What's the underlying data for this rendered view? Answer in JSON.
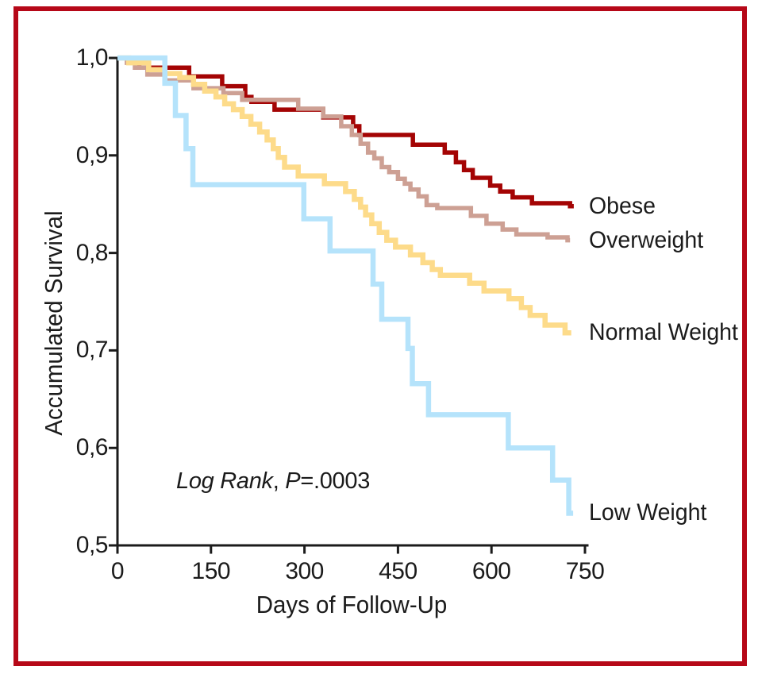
{
  "figure": {
    "border_color": "#b60818",
    "background_color": "#ffffff"
  },
  "chart_data": {
    "type": "line",
    "subtype": "kaplan-meier-step-survival",
    "xlabel": "Days of Follow-Up",
    "ylabel": "Accumulated Survival",
    "xlim": [
      0,
      750
    ],
    "ylim": [
      0.5,
      1.0
    ],
    "grid": false,
    "axis_color": "#1b1b1b",
    "legend_position": "labels-at-curve-ends-right",
    "xticks": {
      "values": [
        0,
        150,
        300,
        450,
        600,
        750
      ],
      "labels": [
        "0",
        "150",
        "300",
        "450",
        "600",
        "750"
      ]
    },
    "yticks": {
      "values": [
        1.0,
        0.9,
        0.8,
        0.7,
        0.6,
        0.5
      ],
      "labels": [
        "1,0",
        "0,9",
        "0,8",
        "0,7",
        "0,6",
        "0,5"
      ]
    },
    "annotation": {
      "italic_text": "Log Rank",
      "separator": ", ",
      "p_symbol": "P",
      "p_value": "=.0003"
    },
    "series": [
      {
        "name": "Obese",
        "color": "#a40404",
        "end_day": 732,
        "points": [
          [
            0,
            1.0
          ],
          [
            20,
            0.996
          ],
          [
            35,
            0.99
          ],
          [
            115,
            0.981
          ],
          [
            168,
            0.971
          ],
          [
            205,
            0.96
          ],
          [
            215,
            0.955
          ],
          [
            252,
            0.947
          ],
          [
            330,
            0.939
          ],
          [
            378,
            0.93
          ],
          [
            388,
            0.921
          ],
          [
            474,
            0.911
          ],
          [
            525,
            0.903
          ],
          [
            543,
            0.893
          ],
          [
            556,
            0.885
          ],
          [
            570,
            0.877
          ],
          [
            598,
            0.869
          ],
          [
            614,
            0.863
          ],
          [
            634,
            0.857
          ],
          [
            665,
            0.851
          ],
          [
            726,
            0.848
          ]
        ]
      },
      {
        "name": "Overweight",
        "color": "#cda094",
        "end_day": 726,
        "points": [
          [
            0,
            1.0
          ],
          [
            15,
            0.995
          ],
          [
            28,
            0.99
          ],
          [
            48,
            0.983
          ],
          [
            76,
            0.977
          ],
          [
            122,
            0.969
          ],
          [
            170,
            0.964
          ],
          [
            200,
            0.957
          ],
          [
            290,
            0.948
          ],
          [
            330,
            0.94
          ],
          [
            359,
            0.93
          ],
          [
            376,
            0.921
          ],
          [
            390,
            0.912
          ],
          [
            402,
            0.903
          ],
          [
            412,
            0.897
          ],
          [
            424,
            0.888
          ],
          [
            436,
            0.883
          ],
          [
            450,
            0.876
          ],
          [
            461,
            0.871
          ],
          [
            470,
            0.865
          ],
          [
            483,
            0.858
          ],
          [
            496,
            0.849
          ],
          [
            513,
            0.846
          ],
          [
            567,
            0.838
          ],
          [
            592,
            0.83
          ],
          [
            618,
            0.824
          ],
          [
            640,
            0.819
          ],
          [
            690,
            0.816
          ],
          [
            722,
            0.813
          ]
        ]
      },
      {
        "name": "Normal Weight",
        "color": "#fddb8a",
        "end_day": 728,
        "points": [
          [
            0,
            1.0
          ],
          [
            18,
            0.995
          ],
          [
            50,
            0.988
          ],
          [
            76,
            0.984
          ],
          [
            100,
            0.98
          ],
          [
            122,
            0.973
          ],
          [
            140,
            0.966
          ],
          [
            158,
            0.96
          ],
          [
            172,
            0.953
          ],
          [
            186,
            0.947
          ],
          [
            200,
            0.94
          ],
          [
            214,
            0.932
          ],
          [
            228,
            0.924
          ],
          [
            240,
            0.916
          ],
          [
            250,
            0.907
          ],
          [
            258,
            0.898
          ],
          [
            268,
            0.888
          ],
          [
            290,
            0.879
          ],
          [
            332,
            0.871
          ],
          [
            366,
            0.863
          ],
          [
            380,
            0.855
          ],
          [
            390,
            0.847
          ],
          [
            398,
            0.839
          ],
          [
            408,
            0.83
          ],
          [
            420,
            0.821
          ],
          [
            432,
            0.813
          ],
          [
            446,
            0.806
          ],
          [
            470,
            0.798
          ],
          [
            490,
            0.79
          ],
          [
            505,
            0.783
          ],
          [
            518,
            0.777
          ],
          [
            565,
            0.769
          ],
          [
            588,
            0.761
          ],
          [
            628,
            0.753
          ],
          [
            648,
            0.744
          ],
          [
            662,
            0.736
          ],
          [
            686,
            0.726
          ],
          [
            718,
            0.718
          ]
        ]
      },
      {
        "name": "Low Weight",
        "color": "#b5e3fb",
        "end_day": 731,
        "points": [
          [
            0,
            1.0
          ],
          [
            76,
            0.974
          ],
          [
            93,
            0.941
          ],
          [
            110,
            0.907
          ],
          [
            121,
            0.87
          ],
          [
            299,
            0.835
          ],
          [
            341,
            0.802
          ],
          [
            410,
            0.768
          ],
          [
            424,
            0.732
          ],
          [
            466,
            0.702
          ],
          [
            473,
            0.666
          ],
          [
            499,
            0.634
          ],
          [
            627,
            0.6
          ],
          [
            698,
            0.567
          ],
          [
            724,
            0.533
          ]
        ]
      }
    ]
  }
}
